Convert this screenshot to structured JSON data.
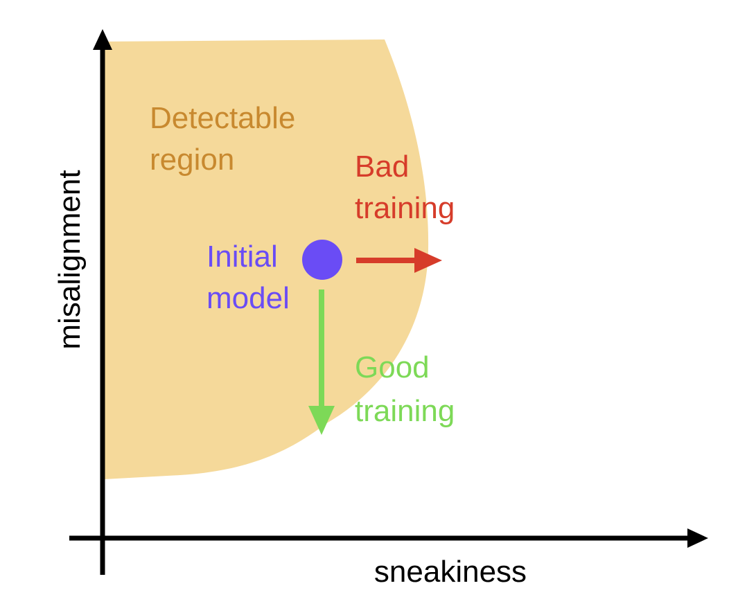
{
  "region_label": [
    "Detectable",
    "region"
  ],
  "bad_training_label": [
    "Bad",
    "training"
  ],
  "initial_model_label": [
    "Initial",
    "model"
  ],
  "good_training_label": [
    "Good",
    "training"
  ],
  "y_axis_label": "misalignment",
  "x_axis_label": "sneakiness"
}
